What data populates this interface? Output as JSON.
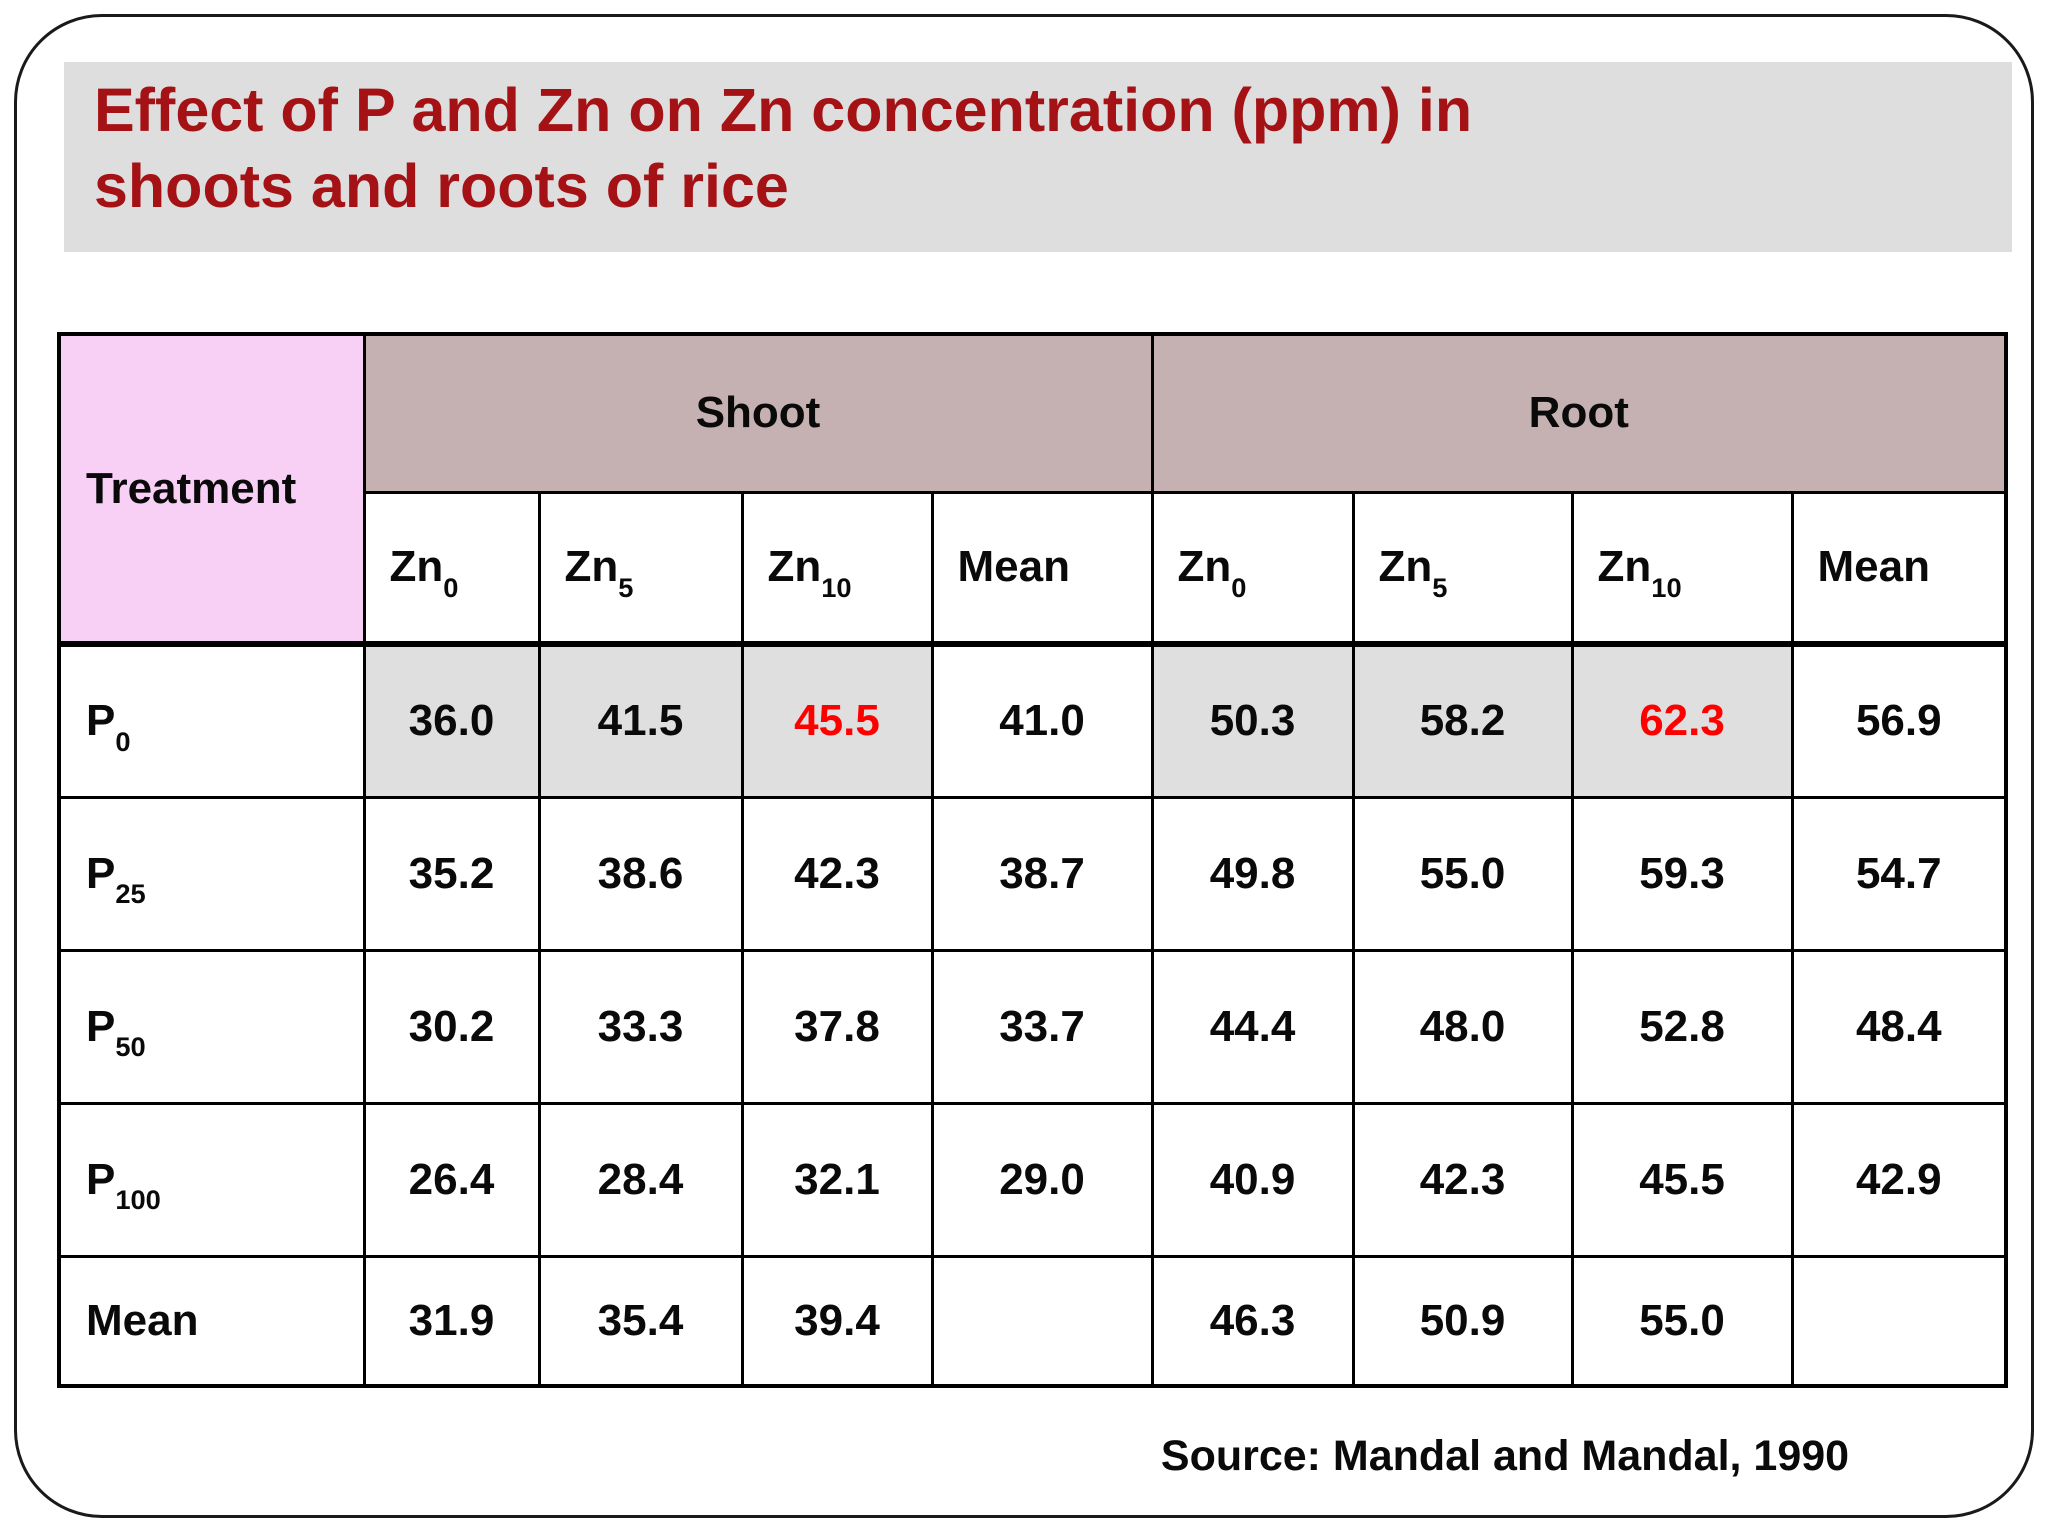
{
  "slide": {
    "title_line1": "Effect of P and Zn on Zn concentration (ppm) in",
    "title_line2": "shoots and roots of rice",
    "source": "Source: Mandal and Mandal, 1990"
  },
  "table": {
    "corner_label": "Treatment",
    "groups": [
      {
        "label": "Shoot"
      },
      {
        "label": "Root"
      }
    ],
    "subheaders": [
      {
        "base": "Zn",
        "sub": "0"
      },
      {
        "base": "Zn",
        "sub": "5"
      },
      {
        "base": "Zn",
        "sub": "10"
      },
      {
        "base": "Mean",
        "sub": ""
      },
      {
        "base": "Zn",
        "sub": "0"
      },
      {
        "base": "Zn",
        "sub": "5"
      },
      {
        "base": "Zn",
        "sub": "10"
      },
      {
        "base": "Mean",
        "sub": ""
      }
    ],
    "rows": [
      {
        "label": {
          "base": "P",
          "sub": "0"
        },
        "cells": [
          "36.0",
          "41.5",
          "45.5",
          "41.0",
          "50.3",
          "58.2",
          "62.3",
          "56.9"
        ],
        "shaded": [
          0,
          1,
          2,
          4,
          5,
          6
        ],
        "red": [
          2,
          6
        ]
      },
      {
        "label": {
          "base": "P",
          "sub": "25"
        },
        "cells": [
          "35.2",
          "38.6",
          "42.3",
          "38.7",
          "49.8",
          "55.0",
          "59.3",
          "54.7"
        ],
        "shaded": [],
        "red": []
      },
      {
        "label": {
          "base": "P",
          "sub": "50"
        },
        "cells": [
          "30.2",
          "33.3",
          "37.8",
          "33.7",
          "44.4",
          "48.0",
          "52.8",
          "48.4"
        ],
        "shaded": [],
        "red": []
      },
      {
        "label": {
          "base": "P",
          "sub": "100"
        },
        "cells": [
          "26.4",
          "28.4",
          "32.1",
          "29.0",
          "40.9",
          "42.3",
          "45.5",
          "42.9"
        ],
        "shaded": [],
        "red": []
      },
      {
        "label": {
          "base": "Mean",
          "sub": ""
        },
        "cells": [
          "31.9",
          "35.4",
          "39.4",
          "",
          "46.3",
          "50.9",
          "55.0",
          ""
        ],
        "shaded": [],
        "red": []
      }
    ]
  },
  "colors": {
    "title_text": "#A41215",
    "title_band": "#DEDEDE",
    "header_group_bg": "#C6B1B2",
    "treatment_bg": "#F8D0F6",
    "accent_purple": "#811C83",
    "highlight_red": "#FF0000",
    "shaded_cell": "#DFDFDF",
    "border": "#000000"
  }
}
